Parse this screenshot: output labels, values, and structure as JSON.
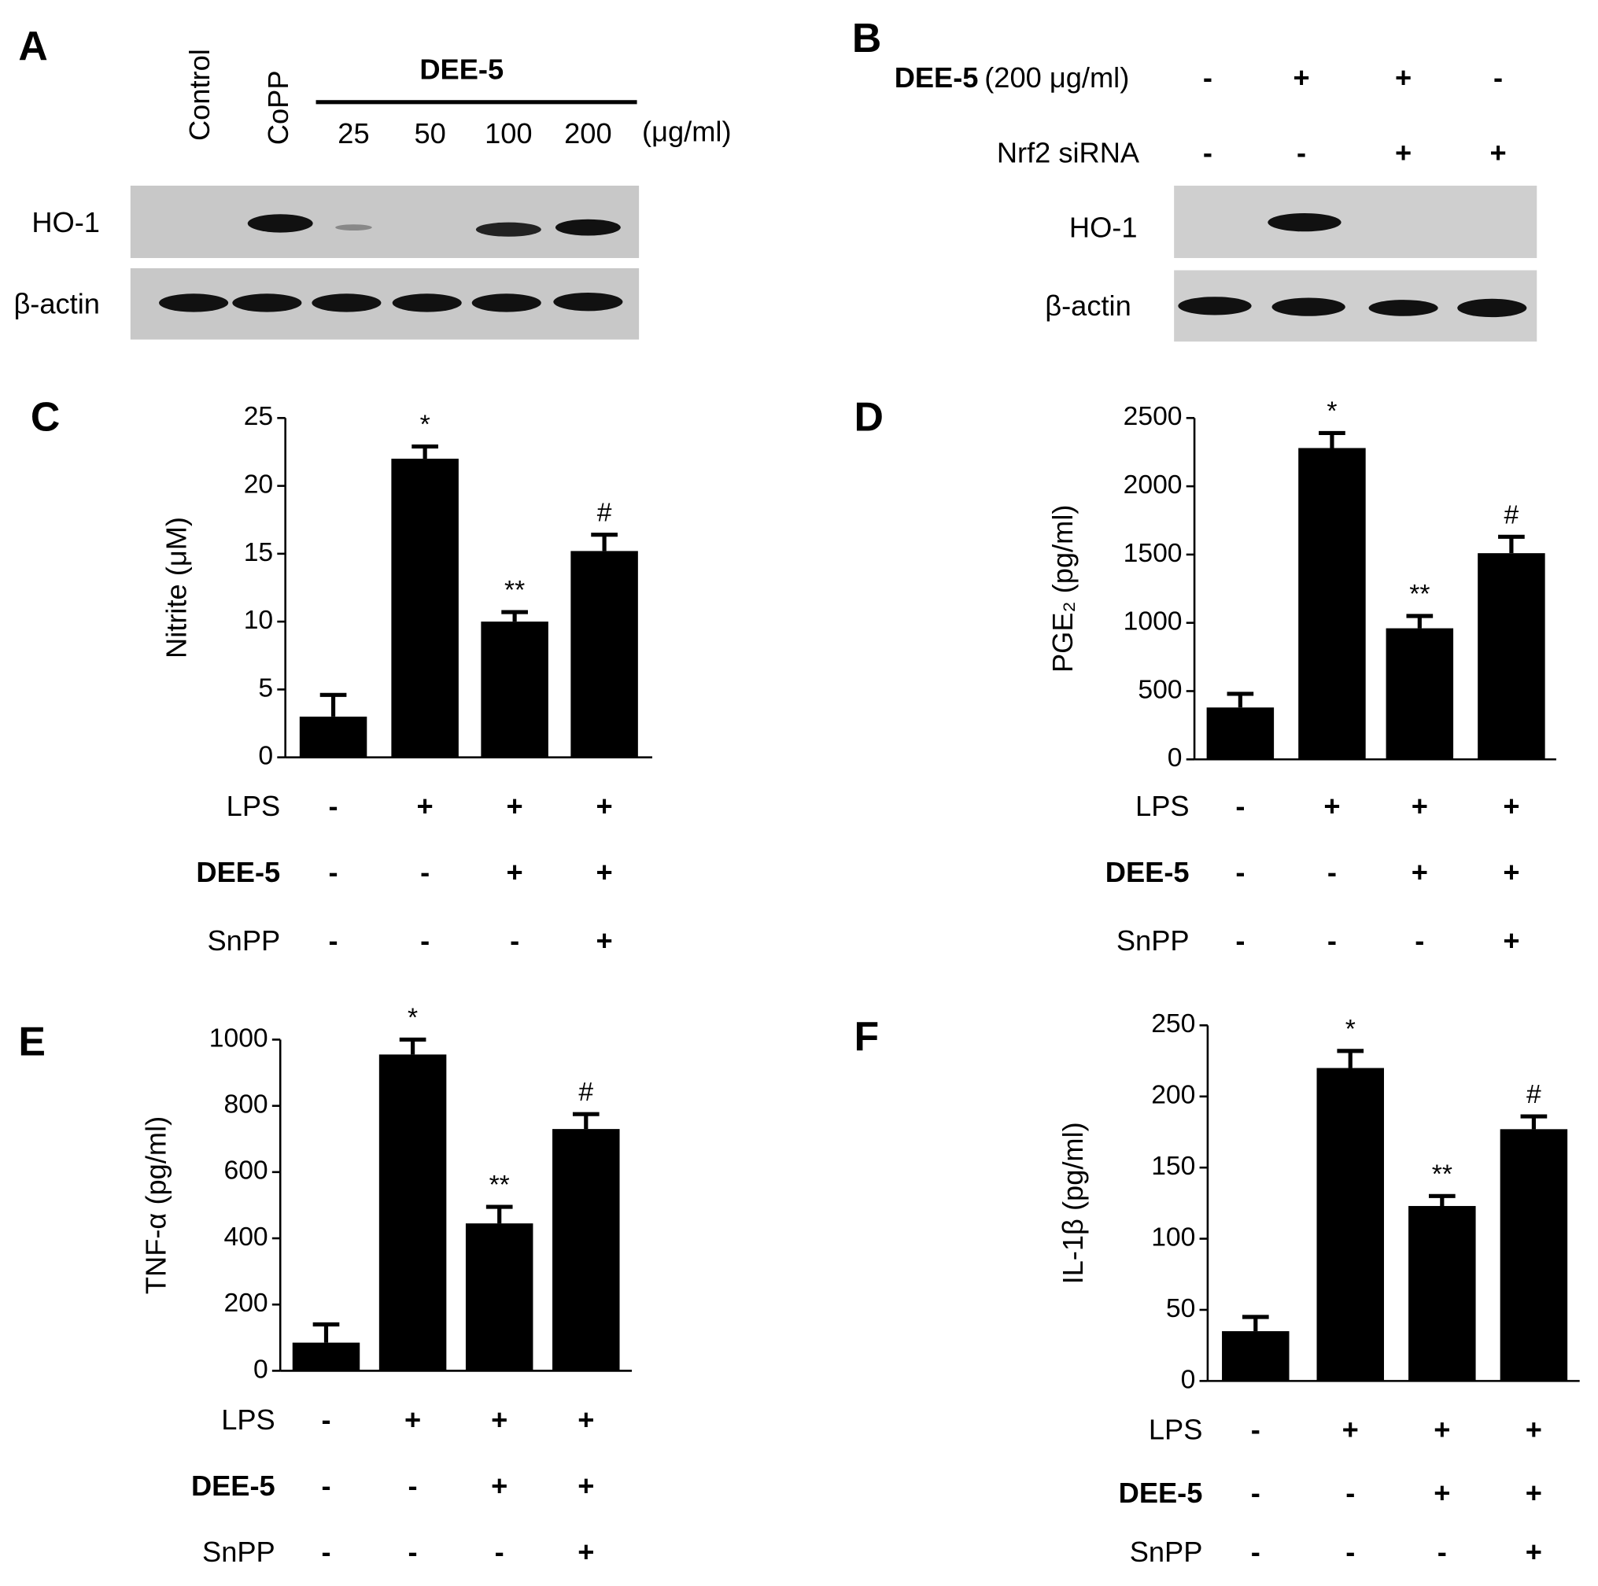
{
  "panel_a": {
    "label": "A",
    "lanes": [
      "Control",
      "CoPP"
    ],
    "group": "DEE-5",
    "doses": [
      "25",
      "50",
      "100",
      "200"
    ],
    "unit": "(μg/ml)",
    "rows": [
      "HO-1",
      "β-actin"
    ]
  },
  "panel_b": {
    "label": "B",
    "treatments": [
      {
        "name": "DEE-5",
        "suffix": "(200 μg/ml)",
        "signs": [
          "-",
          "+",
          "+",
          "-"
        ]
      },
      {
        "name": "Nrf2 siRNA",
        "signs": [
          "-",
          "-",
          "+",
          "+"
        ]
      }
    ],
    "rows": [
      "HO-1",
      "β-actin"
    ]
  },
  "chart_data": [
    {
      "type": "bar",
      "label": "C",
      "ylabel": "Nitrite (μM)",
      "values": [
        3,
        22,
        10,
        15.2
      ],
      "errors": [
        1.6,
        0.9,
        0.7,
        1.2
      ],
      "bar_labels": [
        null,
        "*",
        "**",
        "#"
      ],
      "color": "#000000",
      "ylim": [
        0,
        25
      ],
      "yticks": [
        0,
        5,
        10,
        15,
        20,
        25
      ],
      "treatments": [
        {
          "name": "LPS",
          "signs": [
            "-",
            "+",
            "+",
            "+"
          ]
        },
        {
          "name": "DEE-5",
          "signs": [
            "-",
            "-",
            "+",
            "+"
          ]
        },
        {
          "name": "SnPP",
          "signs": [
            "-",
            "-",
            "-",
            "+"
          ]
        }
      ]
    },
    {
      "type": "bar",
      "label": "D",
      "ylabel": "PGE₂ (pg/ml)",
      "values": [
        380,
        2280,
        960,
        1510
      ],
      "errors": [
        100,
        110,
        90,
        120
      ],
      "bar_labels": [
        null,
        "*",
        "**",
        "#"
      ],
      "color": "#000000",
      "ylim": [
        0,
        2500
      ],
      "yticks": [
        0,
        500,
        1000,
        1500,
        2000,
        2500
      ],
      "treatments": [
        {
          "name": "LPS",
          "signs": [
            "-",
            "+",
            "+",
            "+"
          ]
        },
        {
          "name": "DEE-5",
          "signs": [
            "-",
            "-",
            "+",
            "+"
          ]
        },
        {
          "name": "SnPP",
          "signs": [
            "-",
            "-",
            "-",
            "+"
          ]
        }
      ]
    },
    {
      "type": "bar",
      "label": "E",
      "ylabel": "TNF-α (pg/ml)",
      "values": [
        85,
        955,
        445,
        730
      ],
      "errors": [
        55,
        45,
        50,
        45
      ],
      "bar_labels": [
        null,
        "*",
        "**",
        "#"
      ],
      "color": "#000000",
      "ylim": [
        0,
        1000
      ],
      "yticks": [
        0,
        200,
        400,
        600,
        800,
        1000
      ],
      "treatments": [
        {
          "name": "LPS",
          "signs": [
            "-",
            "+",
            "+",
            "+"
          ]
        },
        {
          "name": "DEE-5",
          "signs": [
            "-",
            "-",
            "+",
            "+"
          ]
        },
        {
          "name": "SnPP",
          "signs": [
            "-",
            "-",
            "-",
            "+"
          ]
        }
      ]
    },
    {
      "type": "bar",
      "label": "F",
      "ylabel": "IL-1β (pg/ml)",
      "values": [
        35,
        220,
        123,
        177
      ],
      "errors": [
        10,
        12,
        7,
        9
      ],
      "bar_labels": [
        null,
        "*",
        "**",
        "#"
      ],
      "color": "#000000",
      "ylim": [
        0,
        250
      ],
      "yticks": [
        0,
        50,
        100,
        150,
        200,
        250
      ],
      "treatments": [
        {
          "name": "LPS",
          "signs": [
            "-",
            "+",
            "+",
            "+"
          ]
        },
        {
          "name": "DEE-5",
          "signs": [
            "-",
            "-",
            "+",
            "+"
          ]
        },
        {
          "name": "SnPP",
          "signs": [
            "-",
            "-",
            "-",
            "+"
          ]
        }
      ]
    }
  ]
}
